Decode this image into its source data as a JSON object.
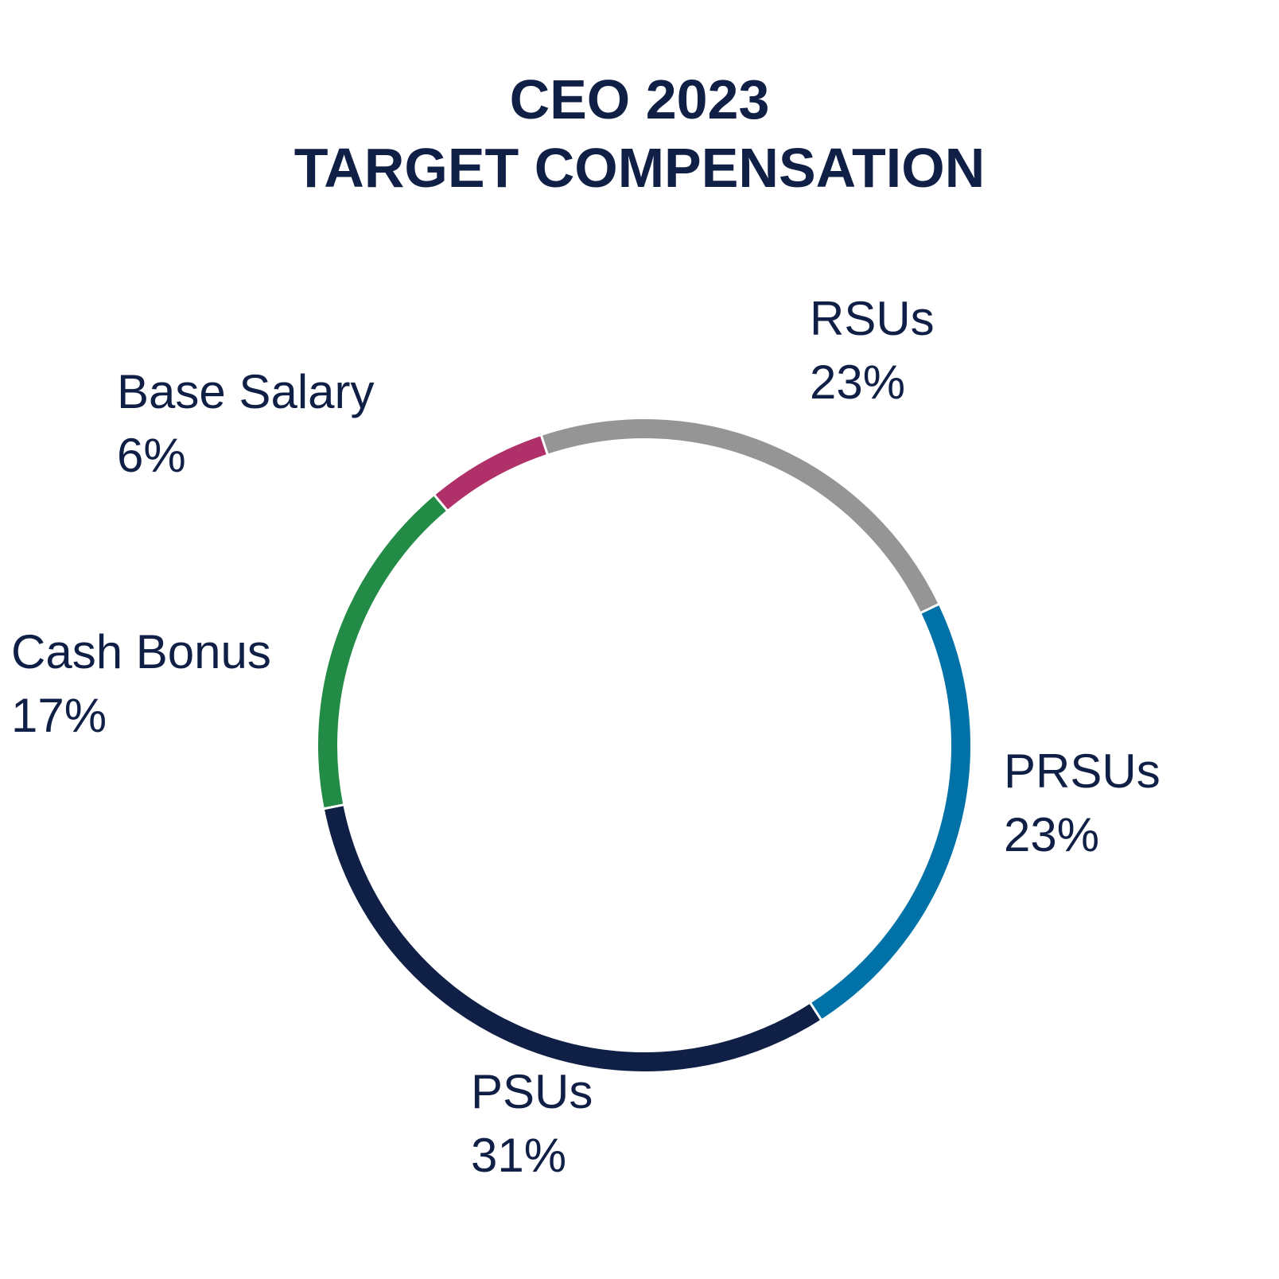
{
  "title": {
    "line1": "CEO 2023",
    "line2": "TARGET COMPENSATION"
  },
  "chart_data": {
    "type": "pie",
    "style": "donut-ring",
    "start_angle_deg_clockwise_from_top": -40,
    "slices": [
      {
        "name": "Base Salary",
        "value": 6,
        "label": "6%",
        "color": "#b0306a"
      },
      {
        "name": "RSUs",
        "value": 23,
        "label": "23%",
        "color": "#959595"
      },
      {
        "name": "PRSUs",
        "value": 23,
        "label": "23%",
        "color": "#0072a8"
      },
      {
        "name": "PSUs",
        "value": 31,
        "label": "31%",
        "color": "#0f1f45"
      },
      {
        "name": "Cash Bonus",
        "value": 17,
        "label": "17%",
        "color": "#228b45"
      }
    ]
  }
}
